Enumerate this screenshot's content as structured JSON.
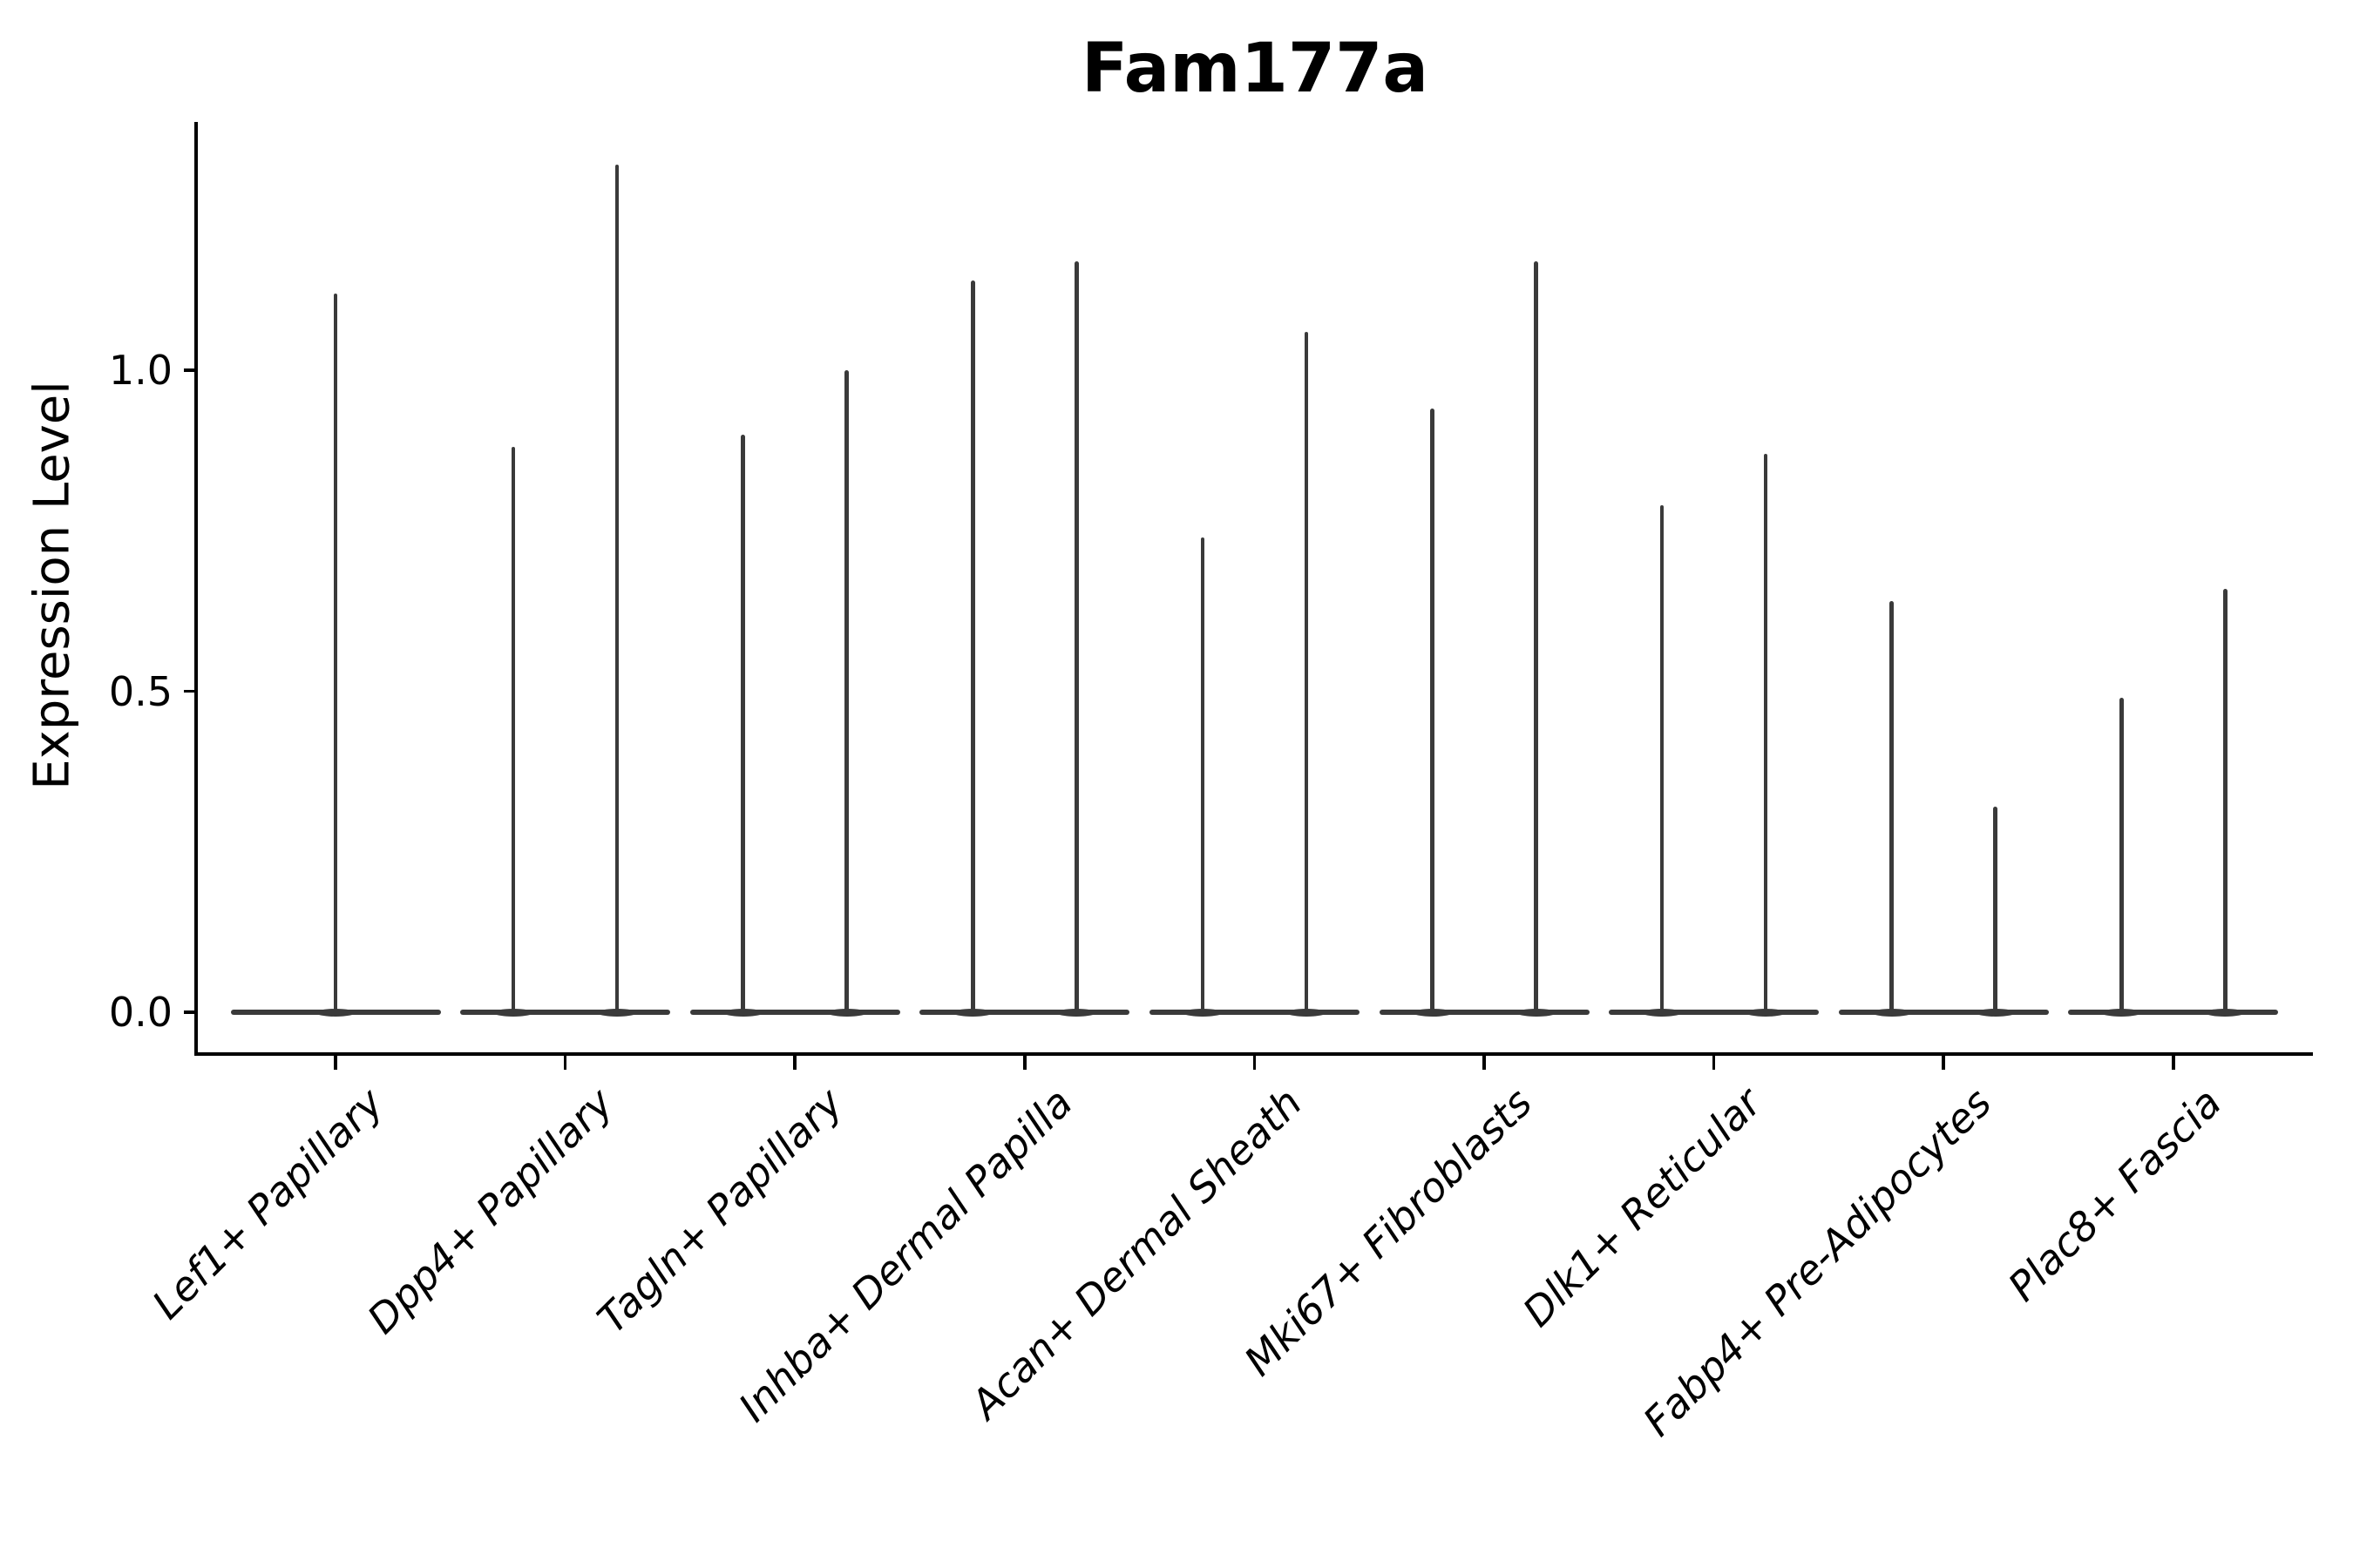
{
  "chart_data": {
    "type": "violin",
    "title": "Fam177a",
    "ylabel": "Expression Level",
    "xlabel": "",
    "grid": false,
    "legend": null,
    "ylim": [
      -0.065,
      1.39
    ],
    "yticks": [
      {
        "label": "0.0",
        "value": 0.0
      },
      {
        "label": "0.5",
        "value": 0.5
      },
      {
        "label": "1.0",
        "value": 1.0
      }
    ],
    "categories": [
      "Lef1+ Papillary",
      "Dpp4+ Papillary",
      "Tagln+ Papillary",
      "Inhba+ Dermal Papilla",
      "Acan+ Dermal Sheath",
      "Mki67+ Fibroblasts",
      "Dlk1+ Reticular",
      "Fabp4+ Pre-Adipocytes",
      "Plac8+ Fascia"
    ],
    "violins": [
      {
        "category": "Lef1+ Papillary",
        "bulk_at": 0.0,
        "spikes": [
          {
            "slot": "center",
            "max": 1.12
          }
        ]
      },
      {
        "category": "Dpp4+ Papillary",
        "bulk_at": 0.0,
        "spikes": [
          {
            "slot": "left",
            "max": 0.88
          },
          {
            "slot": "right",
            "max": 1.32
          }
        ]
      },
      {
        "category": "Tagln+ Papillary",
        "bulk_at": 0.0,
        "spikes": [
          {
            "slot": "left",
            "max": 0.9
          },
          {
            "slot": "right",
            "max": 1.0
          }
        ]
      },
      {
        "category": "Inhba+ Dermal Papilla",
        "bulk_at": 0.0,
        "spikes": [
          {
            "slot": "left",
            "max": 1.14
          },
          {
            "slot": "right",
            "max": 1.17
          }
        ]
      },
      {
        "category": "Acan+ Dermal Sheath",
        "bulk_at": 0.0,
        "spikes": [
          {
            "slot": "left",
            "max": 0.74
          },
          {
            "slot": "right",
            "max": 1.06
          }
        ]
      },
      {
        "category": "Mki67+ Fibroblasts",
        "bulk_at": 0.0,
        "spikes": [
          {
            "slot": "left",
            "max": 0.94
          },
          {
            "slot": "right",
            "max": 1.17
          }
        ]
      },
      {
        "category": "Dlk1+ Reticular",
        "bulk_at": 0.0,
        "spikes": [
          {
            "slot": "left",
            "max": 0.79
          },
          {
            "slot": "right",
            "max": 0.87
          }
        ]
      },
      {
        "category": "Fabp4+ Pre-Adipocytes",
        "bulk_at": 0.0,
        "spikes": [
          {
            "slot": "left",
            "max": 0.64
          },
          {
            "slot": "right",
            "max": 0.32
          }
        ]
      },
      {
        "category": "Plac8+ Fascia",
        "bulk_at": 0.0,
        "spikes": [
          {
            "slot": "left",
            "max": 0.49
          },
          {
            "slot": "right",
            "max": 0.66
          }
        ]
      }
    ],
    "colors": {
      "violin": "#3a3a3a",
      "axis": "#000000",
      "text": "#000000",
      "background": "#ffffff"
    }
  }
}
